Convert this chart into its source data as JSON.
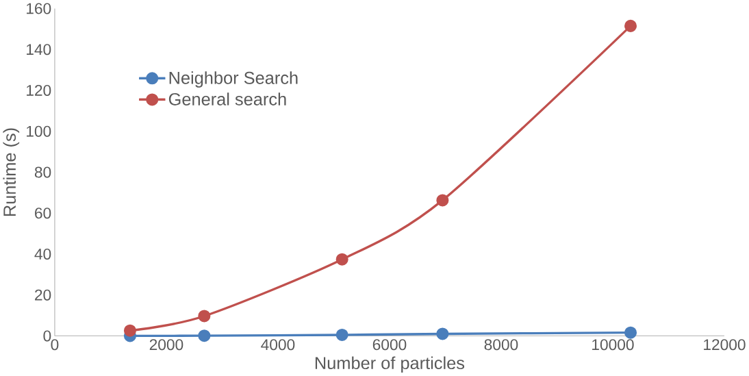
{
  "chart_data": {
    "type": "line",
    "xlabel": "Number of particles",
    "ylabel": "Runtime (s)",
    "x": [
      1350,
      2680,
      5150,
      6950,
      10320
    ],
    "series": [
      {
        "name": "Neighbor Search",
        "color": "#4a7ebb",
        "values": [
          0,
          0.1,
          0.5,
          1.0,
          1.6
        ]
      },
      {
        "name": "General search",
        "color": "#c0504d",
        "values": [
          2.6,
          9.7,
          37.4,
          66.3,
          151.5
        ]
      }
    ],
    "xlim": [
      0,
      12000
    ],
    "ylim": [
      0,
      160
    ],
    "xticks": [
      0,
      2000,
      4000,
      6000,
      8000,
      10000,
      12000
    ],
    "yticks": [
      0,
      20,
      40,
      60,
      80,
      100,
      120,
      140,
      160
    ],
    "grid": false,
    "legend": "top left",
    "marker": "circle",
    "line_style": "solid"
  }
}
